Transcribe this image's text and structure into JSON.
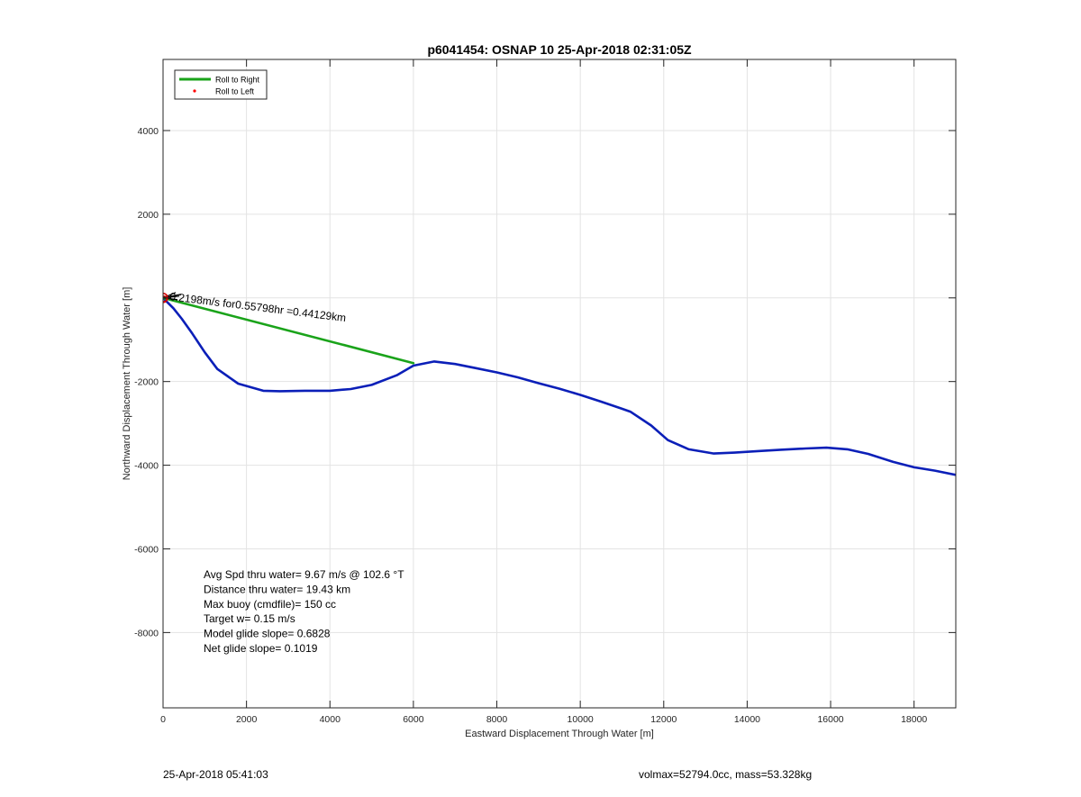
{
  "chart_data": {
    "type": "line",
    "title": "p6041454: OSNAP 10 25-Apr-2018 02:31:05Z",
    "xlabel": "Eastward Displacement Through Water [m]",
    "ylabel": "Northward Displacement Through Water [m]",
    "xlim": [
      0,
      19000
    ],
    "ylim": [
      -9800,
      5700
    ],
    "xticks": [
      0,
      2000,
      4000,
      6000,
      8000,
      10000,
      12000,
      14000,
      16000,
      18000
    ],
    "yticks": [
      -8000,
      -6000,
      -4000,
      -2000,
      0,
      2000,
      4000
    ],
    "ytick_labels": [
      "-8000",
      "-6000",
      "-4000",
      "-2000",
      "",
      "2000",
      "4000"
    ],
    "grid": true,
    "legend": {
      "placement": "top-left",
      "entries": [
        {
          "label": "Roll to Right",
          "color": "#1aa31a",
          "marker": "line"
        },
        {
          "label": "Roll to Left",
          "color": "#ff0000",
          "marker": "dot"
        }
      ]
    },
    "series": [
      {
        "color": "#0b1fb8",
        "x": [
          0,
          100,
          250,
          450,
          700,
          1000,
          1300,
          1800,
          2400,
          2800,
          3400,
          4000,
          4500,
          5000,
          5600,
          6000,
          6500,
          7000,
          7500,
          8000,
          8500,
          9000,
          9500,
          10000,
          10500,
          11000,
          11200,
          11700,
          12100,
          12600,
          13200,
          13700,
          14300,
          14800,
          15400,
          15900,
          16400,
          16900,
          17500,
          18000,
          18500,
          19000
        ],
        "y": [
          0,
          -100,
          -250,
          -500,
          -850,
          -1300,
          -1700,
          -2050,
          -2220,
          -2230,
          -2220,
          -2220,
          -2180,
          -2080,
          -1850,
          -1620,
          -1520,
          -1580,
          -1680,
          -1780,
          -1900,
          -2040,
          -2170,
          -2320,
          -2480,
          -2650,
          -2720,
          -3050,
          -3400,
          -3620,
          -3720,
          -3700,
          -3660,
          -3630,
          -3600,
          -3580,
          -3620,
          -3730,
          -3920,
          -4050,
          -4130,
          -4230
        ]
      },
      {
        "color": "#1aa31a",
        "x": [
          0,
          6000
        ],
        "y": [
          0,
          -1560
        ]
      }
    ],
    "annotations": [
      {
        "text": "0.2198m/s for0.55798hr =0.44129km",
        "x": 150,
        "y": -50,
        "rotation": 7,
        "color": "#000000"
      }
    ],
    "markers": [
      {
        "x": 0,
        "y": 0,
        "color": "#d40000",
        "shape": "circle"
      }
    ],
    "text_box": [
      "Avg Spd thru water=  9.67 m/s @ 102.6 °T",
      "Distance thru water= 19.43 km",
      "Max buoy (cmdfile)= 150 cc",
      "Target w= 0.15 m/s",
      "Model glide slope= 0.6828",
      "Net glide slope= 0.1019"
    ]
  },
  "footer": {
    "left": "25-Apr-2018 05:41:03",
    "right": "volmax=52794.0cc, mass=53.328kg"
  }
}
